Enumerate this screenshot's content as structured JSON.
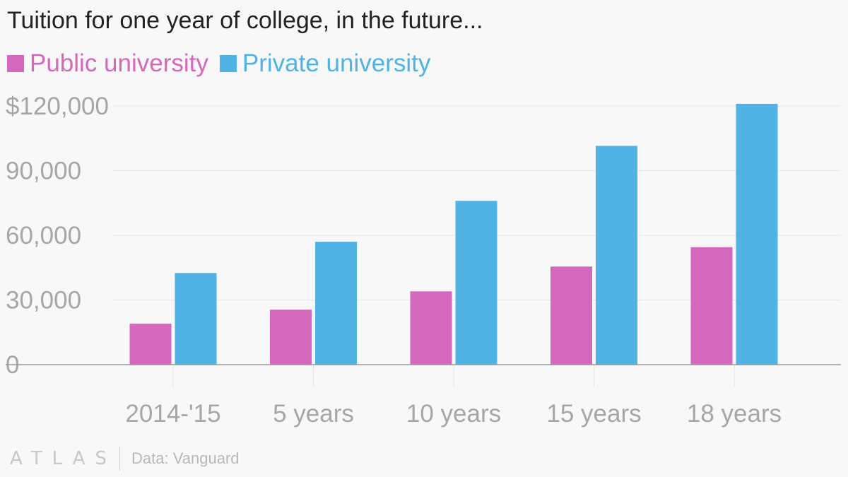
{
  "header": {
    "title": "Tuition for one year of college, in the future..."
  },
  "colors": {
    "public": "#d468bc",
    "private": "#51b2e5",
    "grid": "#e6e6e6",
    "axis": "#999999",
    "tick_text": "#a6a6a6"
  },
  "chart_data": {
    "type": "bar",
    "title": "Tuition for one year of college, in the future...",
    "categories": [
      "2014-'15",
      "5 years",
      "10 years",
      "15 years",
      "18 years"
    ],
    "series": [
      {
        "name": "Public university",
        "values": [
          19000,
          25500,
          34000,
          45500,
          54500
        ]
      },
      {
        "name": "Private university",
        "values": [
          42500,
          57000,
          76000,
          101500,
          121000
        ]
      }
    ],
    "ylim": [
      0,
      120000
    ],
    "yticks": [
      0,
      30000,
      60000,
      90000,
      120000
    ],
    "ytick_labels": [
      "0",
      "30,000",
      "60,000",
      "90,000",
      "$120,000"
    ],
    "xlabel": "",
    "ylabel": "",
    "grid": true,
    "legend_position": "top-left"
  },
  "footer": {
    "logo": "ATLAS",
    "source": "Data: Vanguard"
  }
}
